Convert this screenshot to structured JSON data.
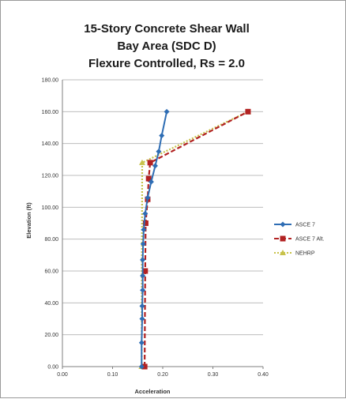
{
  "chart_data": {
    "type": "line",
    "title_lines": [
      "15-Story Concrete Shear Wall",
      "Bay Area (SDC D)",
      "Flexure Controlled, Rs = 2.0"
    ],
    "xlabel": "Acceleration",
    "ylabel": "Elevation (ft)",
    "xlim": [
      0,
      0.4
    ],
    "ylim": [
      0,
      180
    ],
    "x_ticks": [
      "0.00",
      "0.10",
      "0.20",
      "0.30",
      "0.40"
    ],
    "y_ticks": [
      "0.00",
      "20.00",
      "40.00",
      "60.00",
      "80.00",
      "100.00",
      "120.00",
      "140.00",
      "160.00",
      "180.00"
    ],
    "grid": "horizontal",
    "legend_position": "right",
    "series": [
      {
        "name": "ASCE 7",
        "color": "#2e6db4",
        "marker": "diamond",
        "line_style": "solid",
        "points": [
          [
            0.158,
            0
          ],
          [
            0.158,
            15
          ],
          [
            0.159,
            30
          ],
          [
            0.159,
            38
          ],
          [
            0.16,
            48
          ],
          [
            0.16,
            57
          ],
          [
            0.16,
            67
          ],
          [
            0.161,
            77
          ],
          [
            0.162,
            86
          ],
          [
            0.165,
            96
          ],
          [
            0.17,
            106
          ],
          [
            0.177,
            116
          ],
          [
            0.185,
            126
          ],
          [
            0.192,
            135
          ],
          [
            0.198,
            145
          ],
          [
            0.208,
            160
          ]
        ]
      },
      {
        "name": "ASCE 7 Alt.",
        "color": "#b22222",
        "marker": "square",
        "line_style": "dashed",
        "points": [
          [
            0.164,
            0
          ],
          [
            0.165,
            60
          ],
          [
            0.166,
            90
          ],
          [
            0.17,
            105
          ],
          [
            0.172,
            118
          ],
          [
            0.175,
            128
          ],
          [
            0.37,
            160
          ]
        ]
      },
      {
        "name": "NEHRP",
        "color": "#c8c24a",
        "marker": "triangle",
        "line_style": "dotted",
        "points": [
          [
            0.158,
            0
          ],
          [
            0.159,
            128
          ],
          [
            0.37,
            160
          ]
        ]
      }
    ]
  }
}
